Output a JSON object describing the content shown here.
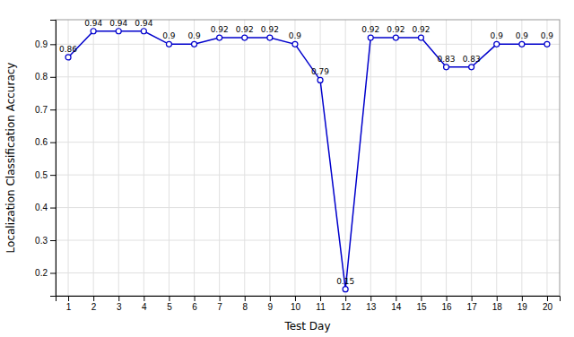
{
  "chart_data": {
    "type": "line",
    "x": [
      1,
      2,
      3,
      4,
      5,
      6,
      7,
      8,
      9,
      10,
      11,
      12,
      13,
      14,
      15,
      16,
      17,
      18,
      19,
      20
    ],
    "series": [
      {
        "values": [
          0.86,
          0.94,
          0.94,
          0.94,
          0.9,
          0.9,
          0.92,
          0.92,
          0.92,
          0.9,
          0.79,
          0.15,
          0.92,
          0.92,
          0.92,
          0.83,
          0.83,
          0.9,
          0.9,
          0.9
        ],
        "color": "#0000cc",
        "marker": "circle"
      }
    ],
    "xlabel": "Test Day",
    "ylabel": "Localization Classification Accuracy",
    "xlim": [
      0.5,
      20.5
    ],
    "ylim": [
      0.13,
      0.975
    ],
    "xticks": [
      1,
      2,
      3,
      4,
      5,
      6,
      7,
      8,
      9,
      10,
      11,
      12,
      13,
      14,
      15,
      16,
      17,
      18,
      19,
      20
    ],
    "yticks": [
      0.2,
      0.3,
      0.4,
      0.5,
      0.6,
      0.7,
      0.8,
      0.9
    ],
    "grid": true,
    "data_labels": true
  }
}
